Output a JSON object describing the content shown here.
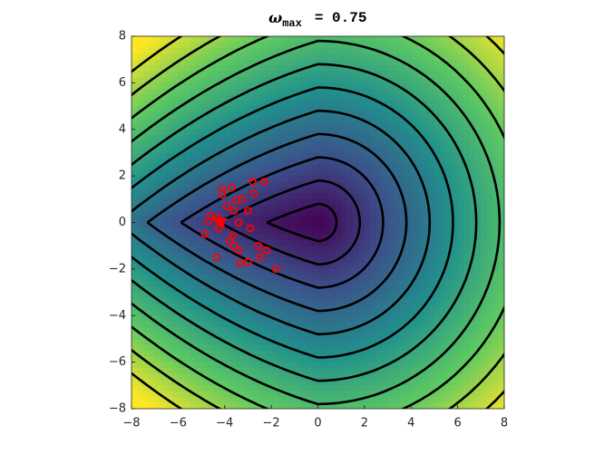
{
  "chart_data": {
    "type": "contour",
    "title": {
      "symbol": "ω",
      "subscript": "max",
      "text": "= 0.75"
    },
    "xlim": [
      -8,
      8
    ],
    "ylim": [
      -8,
      8
    ],
    "xticks": [
      {
        "value": -8,
        "label": "−8"
      },
      {
        "value": -6,
        "label": "−6"
      },
      {
        "value": -4,
        "label": "−4"
      },
      {
        "value": -2,
        "label": "−2"
      },
      0,
      2,
      4,
      6,
      8
    ],
    "yticks": [
      {
        "value": -8,
        "label": "−8"
      },
      {
        "value": -6,
        "label": "−6"
      },
      {
        "value": -4,
        "label": "−4"
      },
      {
        "value": -2,
        "label": "−2"
      },
      0,
      2,
      4,
      6,
      8
    ],
    "contour_levels": [
      0.8,
      1.8,
      2.8,
      3.8,
      4.8,
      5.8,
      6.8,
      7.8,
      8.8,
      9.8,
      10.8
    ],
    "contour_color": "#000000",
    "points": {
      "color": "#ff0000",
      "x": [
        -4.1,
        -3.7,
        -2.8,
        -2.3,
        -4.1,
        -2.75,
        -3.25,
        -3.5,
        -3.9,
        -3.6,
        -3.0,
        -4.6,
        -4.7,
        -4.3,
        -3.4,
        -4.25,
        -4.85,
        -2.9,
        -3.65,
        -3.8,
        -3.6,
        -3.4,
        -2.55,
        -2.2,
        -2.5,
        -4.35,
        -3.35,
        -3.0,
        -1.8
      ],
      "y": [
        1.45,
        1.5,
        1.75,
        1.75,
        1.2,
        1.25,
        1.0,
        0.95,
        0.7,
        0.5,
        0.5,
        0.3,
        0.05,
        0.15,
        0.0,
        -0.25,
        -0.5,
        -0.25,
        -0.55,
        -0.8,
        -1.0,
        -1.2,
        -1.0,
        -1.2,
        -1.5,
        -1.5,
        -1.75,
        -1.7,
        -2.0
      ]
    },
    "star": {
      "color": "#ff0000",
      "x": -4.2,
      "y": 0.05
    }
  }
}
